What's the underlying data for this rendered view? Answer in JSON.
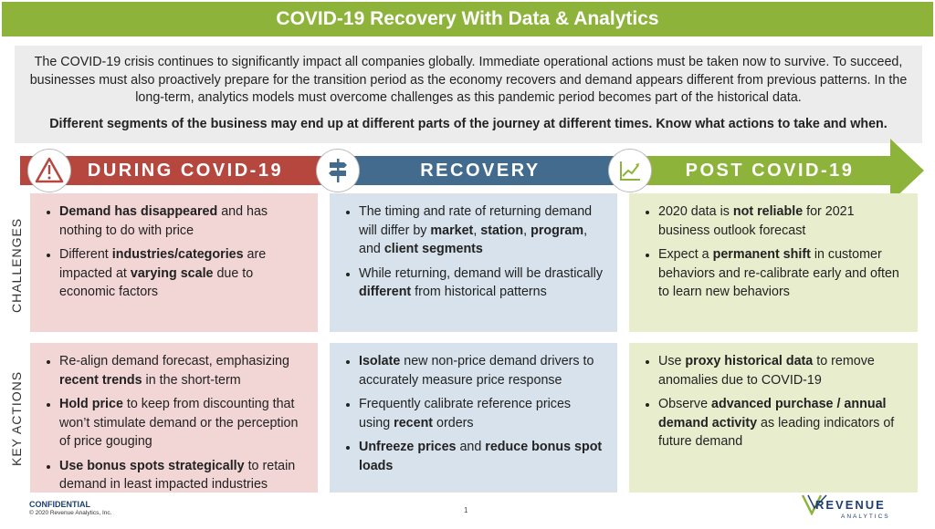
{
  "title": "COVID-19 Recovery With Data & Analytics",
  "intro": {
    "paragraph": "The COVID-19 crisis continues to significantly impact all companies globally. Immediate operational actions must be taken now to survive. To succeed, businesses must also proactively prepare for the transition period as the economy recovers and demand appears different from previous patterns. In the long-term, analytics models must overcome challenges as this pandemic period becomes part of the historical data.",
    "emphasis": "Different segments of the business may end up at different parts of the journey at different times. Know what actions to take and when."
  },
  "phases": [
    {
      "label": "DURING COVID-19",
      "icon": "warning-icon",
      "color": "#b5473f"
    },
    {
      "label": "RECOVERY",
      "icon": "signpost-icon",
      "color": "#426b8e"
    },
    {
      "label": "POST COVID-19",
      "icon": "growth-chart-icon",
      "color": "#8db33a"
    }
  ],
  "row_labels": {
    "challenges": "CHALLENGES",
    "key_actions": "KEY ACTIONS"
  },
  "challenges": {
    "during": [
      [
        {
          "t": "Demand has disappeared",
          "b": true
        },
        {
          "t": " and has nothing to do with price"
        }
      ],
      [
        {
          "t": "Different "
        },
        {
          "t": "industries/categories",
          "b": true
        },
        {
          "t": " are impacted at "
        },
        {
          "t": "varying scale",
          "b": true
        },
        {
          "t": " due to economic factors"
        }
      ]
    ],
    "recovery": [
      [
        {
          "t": "The timing and rate of returning demand will differ by "
        },
        {
          "t": "market",
          "b": true
        },
        {
          "t": ", "
        },
        {
          "t": "station",
          "b": true
        },
        {
          "t": ", "
        },
        {
          "t": "program",
          "b": true
        },
        {
          "t": ", and "
        },
        {
          "t": "client segments",
          "b": true
        }
      ],
      [
        {
          "t": "While returning, demand will be drastically "
        },
        {
          "t": "different",
          "b": true
        },
        {
          "t": " from historical patterns"
        }
      ]
    ],
    "post": [
      [
        {
          "t": "2020 data is "
        },
        {
          "t": "not reliable",
          "b": true
        },
        {
          "t": " for 2021 business outlook forecast"
        }
      ],
      [
        {
          "t": "Expect a "
        },
        {
          "t": "permanent shift",
          "b": true
        },
        {
          "t": " in customer behaviors and re-calibrate early and often to learn new behaviors"
        }
      ]
    ]
  },
  "key_actions": {
    "during": [
      [
        {
          "t": "Re-align demand forecast, emphasizing "
        },
        {
          "t": "recent trends",
          "b": true
        },
        {
          "t": " in the short-term"
        }
      ],
      [
        {
          "t": "Hold price",
          "b": true
        },
        {
          "t": " to keep from discounting that won’t stimulate demand or the perception of price gouging"
        }
      ],
      [
        {
          "t": "Use bonus spots strategically",
          "b": true
        },
        {
          "t": " to retain demand in least impacted industries"
        }
      ]
    ],
    "recovery": [
      [
        {
          "t": "Isolate",
          "b": true
        },
        {
          "t": " new non-price demand drivers to accurately measure price response"
        }
      ],
      [
        {
          "t": "Frequently calibrate reference prices using "
        },
        {
          "t": "recent",
          "b": true
        },
        {
          "t": " orders"
        }
      ],
      [
        {
          "t": "Unfreeze prices",
          "b": true
        },
        {
          "t": " and "
        },
        {
          "t": "reduce bonus spot loads",
          "b": true
        }
      ]
    ],
    "post": [
      [
        {
          "t": "Use "
        },
        {
          "t": "proxy historical data",
          "b": true
        },
        {
          "t": " to remove anomalies due to COVID-19"
        }
      ],
      [
        {
          "t": "Observe "
        },
        {
          "t": "advanced purchase / annual demand activity",
          "b": true
        },
        {
          "t": " as leading indicators of future demand"
        }
      ]
    ]
  },
  "footer": {
    "confidential": "CONFIDENTIAL",
    "copyright": "© 2020 Revenue Analytics, Inc.",
    "page_number": "1",
    "logo_main": "REVENUE",
    "logo_sub": "ANALYTICS"
  }
}
